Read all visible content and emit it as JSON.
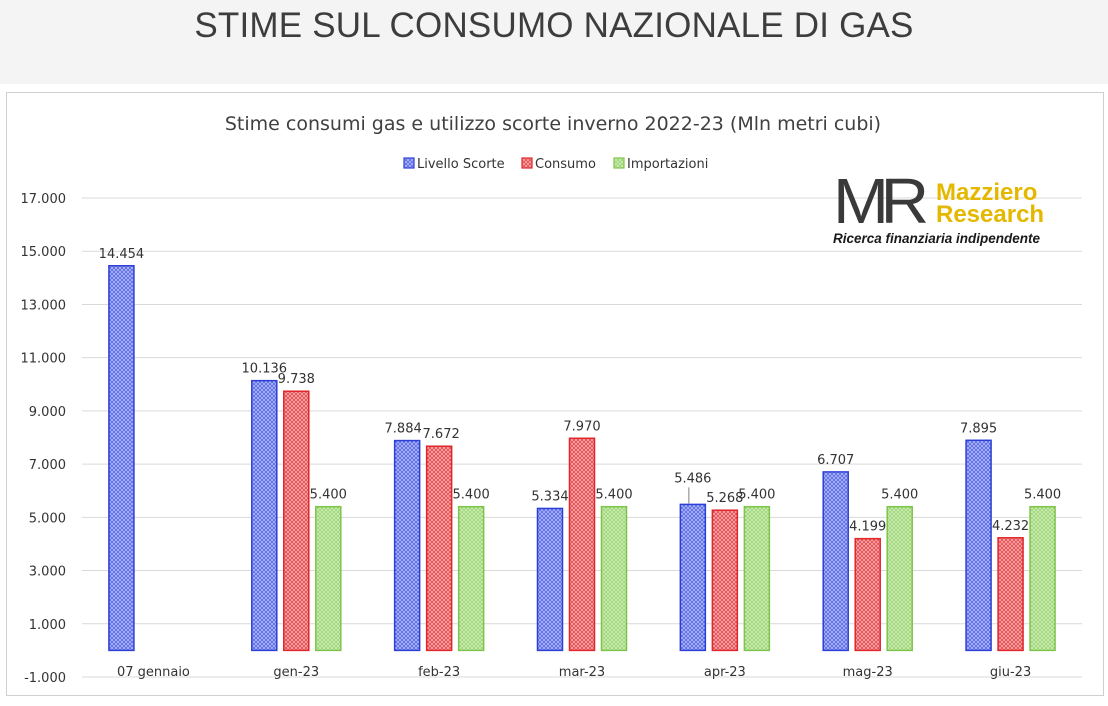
{
  "header": {
    "title": "STIME SUL CONSUMO NAZIONALE DI GAS"
  },
  "logo": {
    "mark": "MR",
    "brand_line1": "Mazziero",
    "brand_line2": "Research",
    "tagline": "Ricerca finanziaria indipendente"
  },
  "chart_data": {
    "type": "bar",
    "title": "Stime consumi gas e utilizzo scorte inverno 2022-23 (Mln metri cubi)",
    "xlabel": "",
    "ylabel": "",
    "categories": [
      "07 gennaio",
      "gen-23",
      "feb-23",
      "mar-23",
      "apr-23",
      "mag-23",
      "giu-23"
    ],
    "series": [
      {
        "name": "Livello Scorte",
        "color": "#2b3fd6",
        "values": [
          14454,
          10136,
          7884,
          5334,
          5486,
          6707,
          7895
        ],
        "labels": [
          "14.454",
          "10.136",
          "7.884",
          "5.334",
          "5.486",
          "6.707",
          "7.895"
        ]
      },
      {
        "name": "Consumo",
        "color": "#e0262b",
        "values": [
          null,
          9738,
          7672,
          7970,
          5268,
          4199,
          4232
        ],
        "labels": [
          "",
          "9.738",
          "7.672",
          "7.970",
          "5.268",
          "4.199",
          "4.232"
        ]
      },
      {
        "name": "Importazioni",
        "color": "#7ec44a",
        "values": [
          null,
          5400,
          5400,
          5400,
          5400,
          5400,
          5400
        ],
        "labels": [
          "",
          "5.400",
          "5.400",
          "5.400",
          "5.400",
          "5.400",
          "5.400"
        ]
      }
    ],
    "ylim": [
      -1000,
      17000
    ],
    "yticks": [
      -1000,
      1000,
      3000,
      5000,
      7000,
      9000,
      11000,
      13000,
      15000,
      17000
    ],
    "ytick_labels": [
      "-1.000",
      "1.000",
      "3.000",
      "5.000",
      "7.000",
      "9.000",
      "11.000",
      "13.000",
      "15.000",
      "17.000"
    ],
    "grid": true,
    "legend": "top-center"
  }
}
